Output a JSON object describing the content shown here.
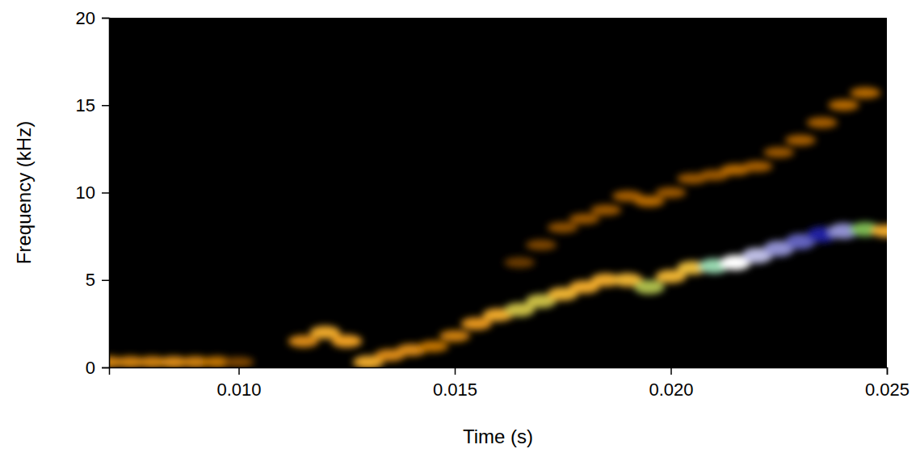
{
  "chart_data": {
    "type": "heatmap",
    "x_label": "Time (s)",
    "y_label": "Frequency (kHz)",
    "xlim": [
      0.007,
      0.025
    ],
    "ylim": [
      0,
      20
    ],
    "xticks": [
      {
        "value": 0.01,
        "label": "0.010"
      },
      {
        "value": 0.015,
        "label": "0.015"
      },
      {
        "value": 0.02,
        "label": "0.020"
      },
      {
        "value": 0.025,
        "label": "0.025"
      }
    ],
    "yticks": [
      0,
      5,
      10,
      15,
      20
    ],
    "cells": [
      [
        0.0165,
        6.0,
        0.12
      ],
      [
        0.017,
        7.0,
        0.15
      ],
      [
        0.0175,
        8.0,
        0.18
      ],
      [
        0.018,
        8.5,
        0.2
      ],
      [
        0.0185,
        9.0,
        0.2
      ],
      [
        0.019,
        9.8,
        0.22
      ],
      [
        0.0195,
        9.5,
        0.25
      ],
      [
        0.02,
        10.0,
        0.2
      ],
      [
        0.0205,
        10.8,
        0.2
      ],
      [
        0.021,
        11.0,
        0.2
      ],
      [
        0.0215,
        11.3,
        0.25
      ],
      [
        0.022,
        11.5,
        0.22
      ],
      [
        0.0225,
        12.3,
        0.2
      ],
      [
        0.023,
        13.0,
        0.22
      ],
      [
        0.0235,
        14.0,
        0.22
      ],
      [
        0.024,
        15.0,
        0.25
      ],
      [
        0.0245,
        15.7,
        0.25
      ],
      [
        0.007,
        0.3,
        0.35
      ],
      [
        0.0075,
        0.3,
        0.35
      ],
      [
        0.008,
        0.3,
        0.35
      ],
      [
        0.0085,
        0.3,
        0.4
      ],
      [
        0.009,
        0.3,
        0.35
      ],
      [
        0.0095,
        0.3,
        0.3
      ],
      [
        0.01,
        0.3,
        0.15
      ],
      [
        0.0115,
        1.5,
        0.4
      ],
      [
        0.012,
        2.0,
        0.55
      ],
      [
        0.0125,
        1.5,
        0.5
      ],
      [
        0.013,
        0.3,
        0.55
      ],
      [
        0.0135,
        0.7,
        0.4
      ],
      [
        0.014,
        1.0,
        0.4
      ],
      [
        0.0145,
        1.2,
        0.3
      ],
      [
        0.015,
        1.8,
        0.35
      ],
      [
        0.0155,
        2.5,
        0.45
      ],
      [
        0.016,
        3.0,
        0.55
      ],
      [
        0.0165,
        3.3,
        0.7
      ],
      [
        0.017,
        3.8,
        0.7
      ],
      [
        0.0175,
        4.2,
        0.6
      ],
      [
        0.018,
        4.6,
        0.55
      ],
      [
        0.0185,
        5.0,
        0.55
      ],
      [
        0.019,
        5.0,
        0.6
      ],
      [
        0.0195,
        4.6,
        0.72
      ],
      [
        0.02,
        5.2,
        0.6
      ],
      [
        0.0205,
        5.7,
        0.65
      ],
      [
        0.021,
        5.8,
        0.85
      ],
      [
        0.0215,
        6.0,
        0.9
      ],
      [
        0.022,
        6.4,
        0.93
      ],
      [
        0.0225,
        6.8,
        0.95
      ],
      [
        0.023,
        7.2,
        0.97
      ],
      [
        0.0235,
        7.6,
        1.0
      ],
      [
        0.024,
        7.8,
        0.95
      ],
      [
        0.0245,
        7.9,
        0.75
      ],
      [
        0.025,
        7.8,
        0.55
      ]
    ]
  }
}
